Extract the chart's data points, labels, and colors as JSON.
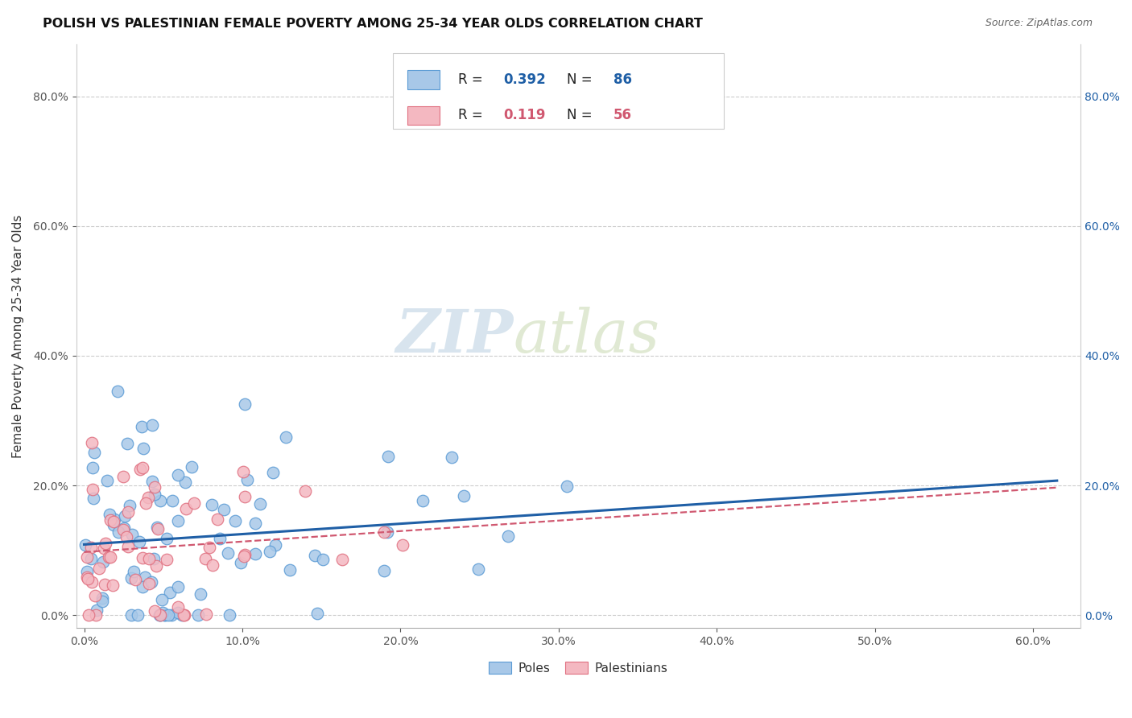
{
  "title": "POLISH VS PALESTINIAN FEMALE POVERTY AMONG 25-34 YEAR OLDS CORRELATION CHART",
  "source": "Source: ZipAtlas.com",
  "ylabel_label": "Female Poverty Among 25-34 Year Olds",
  "poles_R": "0.392",
  "poles_N": "86",
  "palest_R": "0.119",
  "palest_N": "56",
  "poles_color": "#a8c8e8",
  "poles_edge_color": "#5b9bd5",
  "palest_color": "#f4b8c1",
  "palest_edge_color": "#e07080",
  "poles_line_color": "#1f5fa6",
  "palest_line_color": "#d05870",
  "watermark_zip": "ZIP",
  "watermark_atlas": "atlas",
  "background_color": "#ffffff",
  "xlim": [
    -0.005,
    0.63
  ],
  "ylim": [
    -0.02,
    0.88
  ],
  "xticks": [
    0.0,
    0.1,
    0.2,
    0.3,
    0.4,
    0.5,
    0.6
  ],
  "yticks": [
    0.0,
    0.2,
    0.4,
    0.6,
    0.8
  ]
}
